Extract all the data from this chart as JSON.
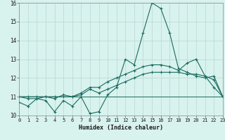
{
  "xlabel": "Humidex (Indice chaleur)",
  "x": [
    0,
    1,
    2,
    3,
    4,
    5,
    6,
    7,
    8,
    9,
    10,
    11,
    12,
    13,
    14,
    15,
    16,
    17,
    18,
    19,
    20,
    21,
    22,
    23
  ],
  "line1": [
    10.7,
    10.5,
    10.9,
    10.8,
    10.2,
    10.8,
    10.5,
    11.0,
    10.1,
    10.2,
    11.1,
    11.5,
    13.0,
    12.7,
    14.4,
    16.0,
    15.7,
    14.4,
    12.5,
    12.3,
    12.1,
    12.0,
    12.1,
    11.0
  ],
  "line2": [
    11.0,
    10.9,
    10.9,
    11.0,
    10.9,
    11.1,
    11.0,
    11.1,
    11.4,
    11.2,
    11.4,
    11.6,
    11.8,
    12.0,
    12.2,
    12.3,
    12.3,
    12.3,
    12.3,
    12.2,
    12.2,
    12.1,
    11.9,
    11.0
  ],
  "line3": [
    11.0,
    11.0,
    11.0,
    11.0,
    11.0,
    11.0,
    11.0,
    11.0,
    11.0,
    11.0,
    11.0,
    11.0,
    11.0,
    11.0,
    11.0,
    11.0,
    11.0,
    11.0,
    11.0,
    11.0,
    11.0,
    11.0,
    11.0,
    11.0
  ],
  "line4": [
    11.0,
    11.0,
    11.0,
    11.0,
    11.0,
    11.0,
    11.0,
    11.2,
    11.5,
    11.5,
    11.8,
    12.0,
    12.2,
    12.4,
    12.6,
    12.7,
    12.7,
    12.6,
    12.4,
    12.8,
    13.0,
    12.1,
    11.5,
    11.0
  ],
  "ylim": [
    10,
    16
  ],
  "yticks": [
    10,
    11,
    12,
    13,
    14,
    15,
    16
  ],
  "xticks": [
    0,
    1,
    2,
    3,
    4,
    5,
    6,
    7,
    8,
    9,
    10,
    11,
    12,
    13,
    14,
    15,
    16,
    17,
    18,
    19,
    20,
    21,
    22,
    23
  ],
  "line_color": "#1a6b60",
  "bg_color": "#d8f2ee",
  "grid_color": "#b8d8d2"
}
